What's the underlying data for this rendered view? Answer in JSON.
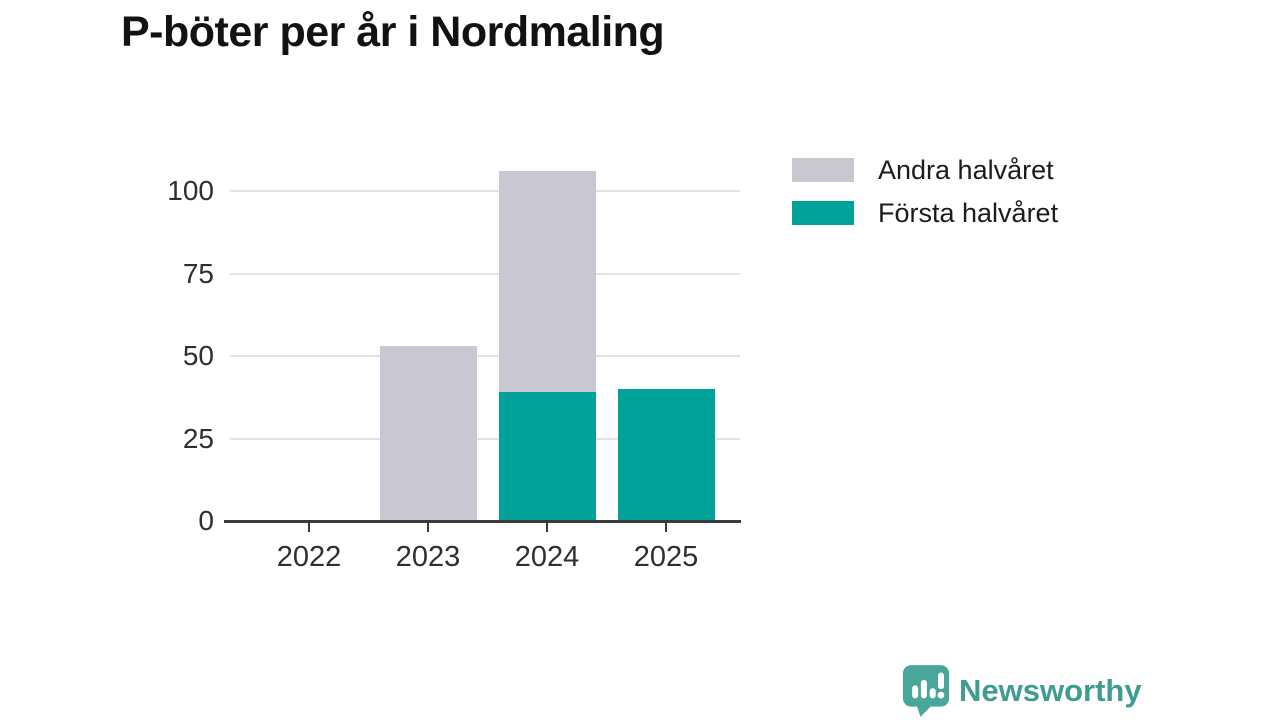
{
  "chart_data": {
    "type": "bar",
    "stacked": true,
    "title": "P-böter per år i Nordmaling",
    "categories": [
      "2022",
      "2023",
      "2024",
      "2025"
    ],
    "series": [
      {
        "name": "Första halvåret",
        "color": "#00A29A",
        "values": [
          0,
          0,
          39,
          40
        ]
      },
      {
        "name": "Andra halvåret",
        "color": "#C9C8D2",
        "values": [
          0,
          53,
          67,
          0
        ]
      }
    ],
    "yticks": [
      0,
      25,
      50,
      75,
      100
    ],
    "ylim": [
      0,
      107
    ],
    "xlabel": "",
    "ylabel": "",
    "grid": "horizontal",
    "legend_position": "top-right"
  },
  "legend": [
    {
      "label": "Andra halvåret",
      "color": "#C9C8D2"
    },
    {
      "label": "Första halvåret",
      "color": "#00A29A"
    }
  ],
  "branding": {
    "logo_text": "Newsworthy",
    "logo_icon": "bar-chart-speech-bubble-icon",
    "icon_color": "#4BA69A",
    "text_color": "#3E9C92"
  },
  "colors": {
    "first_half": "#00A29A",
    "second_half": "#C9C8D2",
    "gridline": "#E2E2E2",
    "axis": "#3B3B3B",
    "title_text": "#121212",
    "tick_text": "#2F2F2F"
  }
}
